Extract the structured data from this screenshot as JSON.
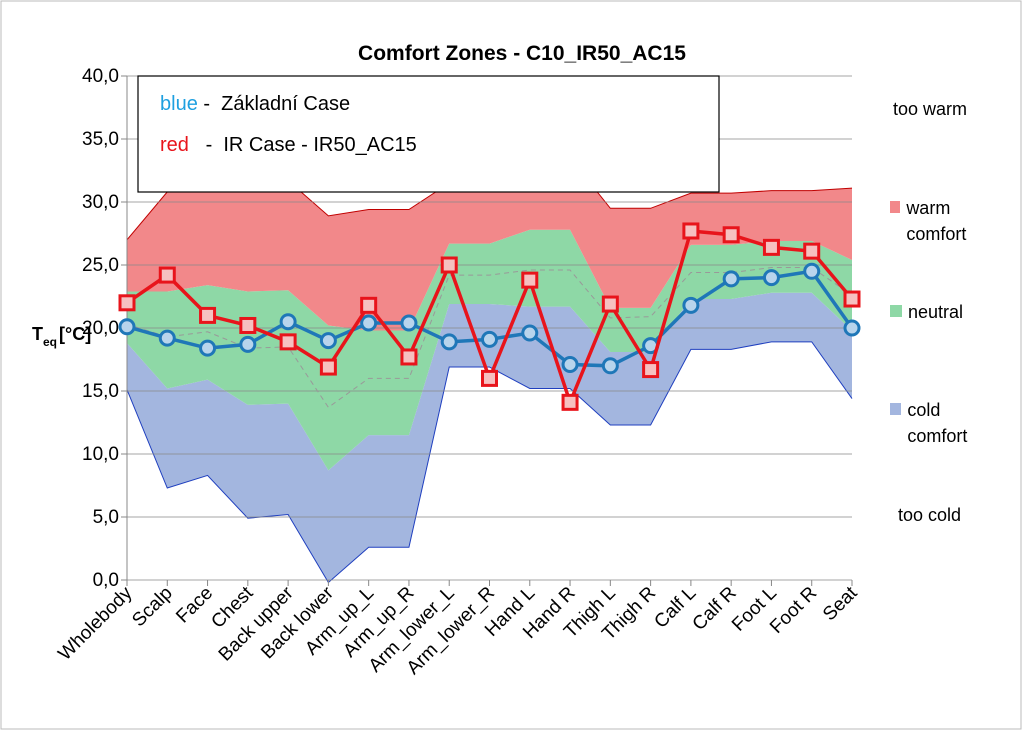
{
  "chart_data": {
    "type": "line",
    "title": "Comfort Zones - C10_IR50_AC15",
    "y_label": {
      "main": "T",
      "sub": "eq",
      "unit": "[°C]"
    },
    "categories": [
      "Wholebody",
      "Scalp",
      "Face",
      "Chest",
      "Back upper",
      "Back lower",
      "Arm_up_L",
      "Arm_up_R",
      "Arm_lower_L",
      "Arm_lower_R",
      "Hand L",
      "Hand R",
      "Thigh L",
      "Thigh R",
      "Calf L",
      "Calf R",
      "Foot L",
      "Foot R",
      "Seat"
    ],
    "ylim": [
      0,
      40
    ],
    "yticks": [
      {
        "value": 0,
        "label": "0,0"
      },
      {
        "value": 5,
        "label": "5,0"
      },
      {
        "value": 10,
        "label": "10,0"
      },
      {
        "value": 15,
        "label": "15,0"
      },
      {
        "value": 20,
        "label": "20,0"
      },
      {
        "value": 25,
        "label": "25,0"
      },
      {
        "value": 30,
        "label": "30,0"
      },
      {
        "value": 35,
        "label": "35,0"
      },
      {
        "value": 40,
        "label": "40,0"
      }
    ],
    "zones": [
      {
        "name": "cold comfort",
        "color": "#a3b6df",
        "low": [
          15.1,
          7.3,
          8.3,
          4.9,
          5.2,
          -0.2,
          2.6,
          2.6,
          16.9,
          16.9,
          15.2,
          15.2,
          12.3,
          12.3,
          18.3,
          18.3,
          18.9,
          18.9,
          14.4
        ],
        "high": [
          18.8,
          15.2,
          15.9,
          13.9,
          14.0,
          8.7,
          11.5,
          11.5,
          21.9,
          21.9,
          21.7,
          21.7,
          18.1,
          18.1,
          22.3,
          22.3,
          22.8,
          22.8,
          19.8
        ]
      },
      {
        "name": "neutral",
        "color": "#8ed8a6",
        "low": [
          18.8,
          15.2,
          15.9,
          13.9,
          14.0,
          8.7,
          11.5,
          11.5,
          21.9,
          21.9,
          21.7,
          21.7,
          18.1,
          18.1,
          22.3,
          22.3,
          22.8,
          22.8,
          19.8
        ],
        "high": [
          22.9,
          22.9,
          23.4,
          22.9,
          23.0,
          20.2,
          19.8,
          19.8,
          26.7,
          26.7,
          27.8,
          27.8,
          21.6,
          21.6,
          26.6,
          26.6,
          26.9,
          26.9,
          25.4
        ]
      },
      {
        "name": "warm comfort",
        "color": "#f2888a",
        "low": [
          22.9,
          22.9,
          23.4,
          22.9,
          23.0,
          20.2,
          19.8,
          19.8,
          26.7,
          26.7,
          27.8,
          27.8,
          21.6,
          21.6,
          26.6,
          26.6,
          26.9,
          26.9,
          25.4
        ],
        "high": [
          27.0,
          30.8,
          31.0,
          31.7,
          31.7,
          28.9,
          29.4,
          29.4,
          31.5,
          31.5,
          33.5,
          33.5,
          29.5,
          29.5,
          30.7,
          30.7,
          30.9,
          30.9,
          31.1
        ]
      }
    ],
    "zone_labels": {
      "top": "too warm",
      "bottom": "too cold"
    },
    "series": [
      {
        "color": "#999999",
        "dashed": true,
        "values": [
          20.3,
          19.3,
          19.7,
          18.4,
          18.5,
          13.7,
          16.0,
          16.0,
          24.2,
          24.2,
          24.6,
          24.6,
          20.8,
          20.9,
          24.4,
          24.4,
          24.8,
          24.8,
          22.6
        ]
      },
      {
        "name": "blue",
        "desc": " -  Základní Case",
        "color": "#1f77b8",
        "marker": "circle",
        "values": [
          20.1,
          19.2,
          18.4,
          18.7,
          20.5,
          19.0,
          20.4,
          20.4,
          18.9,
          19.1,
          19.6,
          17.1,
          17.0,
          18.6,
          21.8,
          23.9,
          24.0,
          24.5,
          20.0
        ]
      },
      {
        "name": "red",
        "desc": "   -  IR Case - IR50_AC15",
        "color": "#e8141b",
        "marker": "square",
        "values": [
          22.0,
          24.2,
          21.0,
          20.2,
          18.9,
          16.9,
          21.8,
          17.7,
          25.0,
          16.0,
          23.8,
          14.1,
          21.9,
          16.7,
          27.7,
          27.4,
          26.4,
          26.1,
          22.3
        ]
      }
    ]
  }
}
